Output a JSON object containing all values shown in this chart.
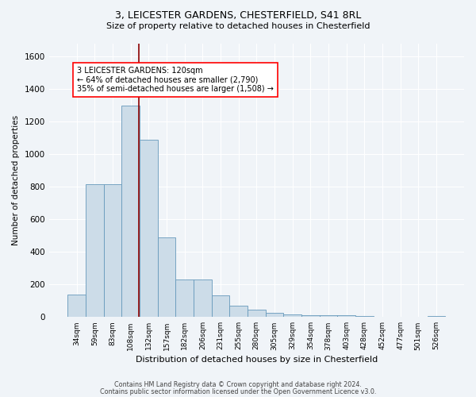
{
  "title_line1": "3, LEICESTER GARDENS, CHESTERFIELD, S41 8RL",
  "title_line2": "Size of property relative to detached houses in Chesterfield",
  "xlabel": "Distribution of detached houses by size in Chesterfield",
  "ylabel": "Number of detached properties",
  "bar_labels": [
    "34sqm",
    "59sqm",
    "83sqm",
    "108sqm",
    "132sqm",
    "157sqm",
    "182sqm",
    "206sqm",
    "231sqm",
    "255sqm",
    "280sqm",
    "305sqm",
    "329sqm",
    "354sqm",
    "378sqm",
    "403sqm",
    "428sqm",
    "452sqm",
    "477sqm",
    "501sqm",
    "526sqm"
  ],
  "bar_values": [
    140,
    815,
    815,
    1300,
    1090,
    490,
    230,
    230,
    135,
    70,
    45,
    25,
    15,
    10,
    10,
    10,
    5,
    0,
    0,
    0,
    5
  ],
  "bar_color": "#ccdce8",
  "bar_edge_color": "#6699bb",
  "vline_color": "#8b0000",
  "annotation_text": "3 LEICESTER GARDENS: 120sqm\n← 64% of detached houses are smaller (2,790)\n35% of semi-detached houses are larger (1,508) →",
  "annotation_box_color": "white",
  "annotation_box_edge_color": "red",
  "ylim": [
    0,
    1680
  ],
  "yticks": [
    0,
    200,
    400,
    600,
    800,
    1000,
    1200,
    1400,
    1600
  ],
  "footer_line1": "Contains HM Land Registry data © Crown copyright and database right 2024.",
  "footer_line2": "Contains public sector information licensed under the Open Government Licence v3.0.",
  "bg_color": "#f0f4f8",
  "plot_bg_color": "#f0f4f8",
  "grid_color": "#ffffff"
}
